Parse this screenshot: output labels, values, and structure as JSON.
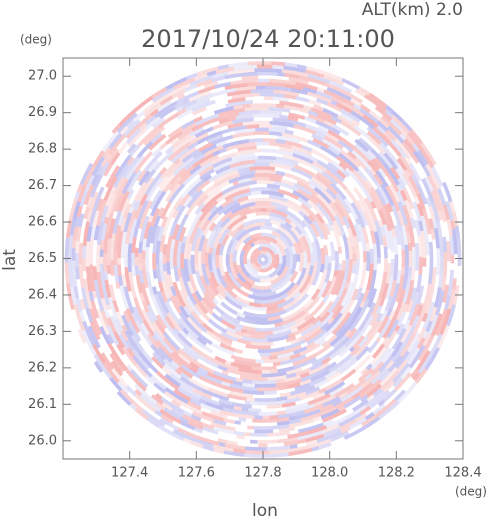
{
  "chart_data": {
    "type": "radar-ppi",
    "title": "2017/10/24 20:11:00",
    "annotation": "ALT(km) 2.0",
    "xlabel": "lon",
    "ylabel": "lat",
    "xunit": "(deg)",
    "yunit": "(deg)",
    "xlim": [
      127.2,
      128.4
    ],
    "ylim": [
      25.95,
      27.05
    ],
    "xticks": [
      127.4,
      127.6,
      127.8,
      {
        "value": 128,
        "label": "128.0"
      },
      128.2,
      128.4
    ],
    "yticks": [
      {
        "value": 26,
        "label": "26.0"
      },
      26.1,
      26.2,
      26.3,
      26.4,
      26.5,
      26.6,
      26.7,
      26.8,
      26.9,
      {
        "value": 27,
        "label": "27.0"
      }
    ]
  }
}
